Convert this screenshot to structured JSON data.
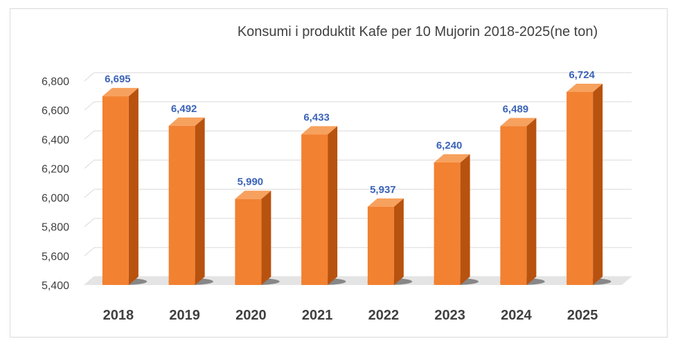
{
  "chart_data": {
    "type": "bar",
    "title": "Konsumi  i produktit Kafe per 10 Mujorin 2018-2025(ne ton)",
    "categories": [
      "2018",
      "2019",
      "2020",
      "2021",
      "2022",
      "2023",
      "2024",
      "2025"
    ],
    "values": [
      6695,
      6492,
      5990,
      6433,
      5937,
      6240,
      6489,
      6724
    ],
    "value_labels": [
      "6,695",
      "6,492",
      "5,990",
      "6,433",
      "5,937",
      "6,240",
      "6,489",
      "6,724"
    ],
    "yticks": [
      5400,
      5600,
      5800,
      6000,
      6200,
      6400,
      6600,
      6800
    ],
    "ytick_labels": [
      "5,400",
      "5,600",
      "5,800",
      "6,000",
      "6,200",
      "6,400",
      "6,600",
      "6,800"
    ],
    "ylim": [
      5400,
      6800
    ],
    "xlabel": "",
    "ylabel": "",
    "grid": true,
    "legend": "none",
    "style": "3d",
    "colors": {
      "bar_front": "#f28131",
      "bar_side": "#b8520f",
      "bar_top": "#f7a15e",
      "data_label": "#3b63b8",
      "grid": "#d9d9d9",
      "text": "#404040"
    }
  }
}
